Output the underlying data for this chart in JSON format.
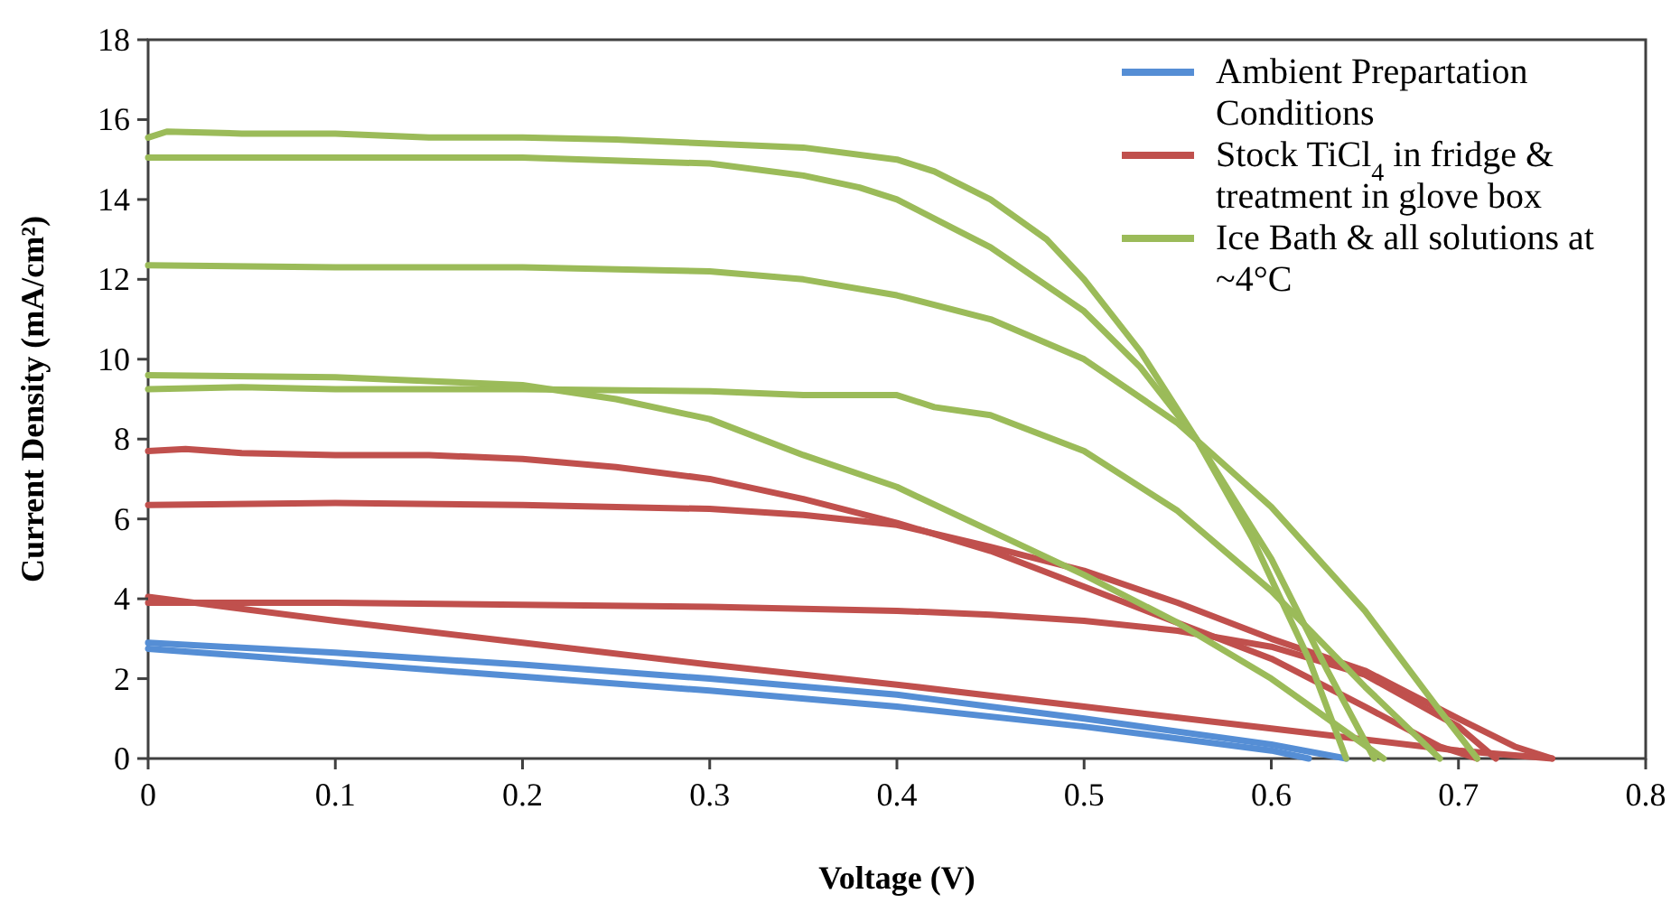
{
  "chart_data": {
    "type": "line",
    "xlabel": "Voltage (V)",
    "ylabel": "Current Density (mA/cm²)",
    "xlim": [
      0,
      0.8
    ],
    "xticks": [
      0,
      0.1,
      0.2,
      0.3,
      0.4,
      0.5,
      0.6,
      0.7,
      0.8
    ],
    "ylim": [
      0,
      18
    ],
    "yticks": [
      0,
      2,
      4,
      6,
      8,
      10,
      12,
      14,
      16,
      18
    ],
    "grid": false,
    "legend": "top right",
    "series": [
      {
        "name": "Ambient Prepartation Conditions",
        "color": "#558ed5",
        "x": [
          0,
          0.1,
          0.2,
          0.3,
          0.4,
          0.5,
          0.6,
          0.64
        ],
        "values": [
          2.9,
          2.65,
          2.35,
          2.0,
          1.6,
          1.0,
          0.35,
          0
        ]
      },
      {
        "color": "#558ed5",
        "x": [
          0,
          0.1,
          0.2,
          0.3,
          0.4,
          0.5,
          0.6,
          0.62
        ],
        "values": [
          2.75,
          2.4,
          2.05,
          1.7,
          1.3,
          0.8,
          0.2,
          0
        ]
      },
      {
        "name": "Stock TiCl$_{4}$ in fridge & treatment in glove box",
        "color": "#c0504d",
        "x": [
          0,
          0.02,
          0.05,
          0.1,
          0.15,
          0.2,
          0.25,
          0.3,
          0.35,
          0.4,
          0.45,
          0.5,
          0.55,
          0.6,
          0.65,
          0.69,
          0.71
        ],
        "values": [
          7.7,
          7.75,
          7.65,
          7.6,
          7.6,
          7.5,
          7.3,
          7.0,
          6.5,
          5.9,
          5.2,
          4.3,
          3.4,
          2.5,
          1.3,
          0.3,
          0
        ]
      },
      {
        "color": "#c0504d",
        "x": [
          0,
          0.1,
          0.2,
          0.3,
          0.35,
          0.4,
          0.45,
          0.5,
          0.55,
          0.6,
          0.65,
          0.7,
          0.73,
          0.75
        ],
        "values": [
          6.35,
          6.4,
          6.35,
          6.25,
          6.1,
          5.85,
          5.3,
          4.7,
          3.9,
          3.0,
          2.2,
          1.0,
          0.3,
          0
        ]
      },
      {
        "color": "#c0504d",
        "x": [
          0,
          0.1,
          0.2,
          0.3,
          0.4,
          0.45,
          0.5,
          0.55,
          0.6,
          0.65,
          0.7,
          0.72
        ],
        "values": [
          3.9,
          3.9,
          3.85,
          3.8,
          3.7,
          3.6,
          3.45,
          3.2,
          2.8,
          2.1,
          0.8,
          0
        ]
      },
      {
        "color": "#c0504d",
        "x": [
          0,
          0.1,
          0.2,
          0.3,
          0.4,
          0.5,
          0.6,
          0.7,
          0.75
        ],
        "values": [
          4.05,
          3.45,
          2.9,
          2.35,
          1.85,
          1.3,
          0.75,
          0.2,
          0
        ]
      },
      {
        "name": "Ice Bath & all solutions at ~4°C",
        "color": "#9bbb59",
        "x": [
          0,
          0.01,
          0.05,
          0.1,
          0.15,
          0.2,
          0.25,
          0.3,
          0.35,
          0.4,
          0.42,
          0.45,
          0.48,
          0.5,
          0.53,
          0.56,
          0.6,
          0.63,
          0.655
        ],
        "values": [
          15.55,
          15.7,
          15.65,
          15.65,
          15.55,
          15.55,
          15.5,
          15.4,
          15.3,
          15.0,
          14.7,
          14.0,
          13.0,
          12.0,
          10.2,
          8.0,
          5.0,
          2.2,
          0
        ]
      },
      {
        "color": "#9bbb59",
        "x": [
          0,
          0.1,
          0.2,
          0.3,
          0.35,
          0.38,
          0.4,
          0.45,
          0.5,
          0.53,
          0.56,
          0.59,
          0.62,
          0.64
        ],
        "values": [
          15.05,
          15.05,
          15.05,
          14.9,
          14.6,
          14.3,
          14.0,
          12.8,
          11.2,
          9.8,
          8.0,
          5.5,
          2.5,
          0
        ]
      },
      {
        "color": "#9bbb59",
        "x": [
          0,
          0.1,
          0.2,
          0.3,
          0.35,
          0.4,
          0.45,
          0.5,
          0.55,
          0.6,
          0.65,
          0.69,
          0.71
        ],
        "values": [
          12.35,
          12.3,
          12.3,
          12.2,
          12.0,
          11.6,
          11.0,
          10.0,
          8.4,
          6.3,
          3.7,
          1.2,
          0
        ]
      },
      {
        "color": "#9bbb59",
        "x": [
          0,
          0.05,
          0.1,
          0.2,
          0.3,
          0.35,
          0.4,
          0.42,
          0.45,
          0.5,
          0.55,
          0.6,
          0.65,
          0.69
        ],
        "values": [
          9.25,
          9.3,
          9.25,
          9.25,
          9.2,
          9.1,
          9.1,
          8.8,
          8.6,
          7.7,
          6.2,
          4.2,
          1.8,
          0
        ]
      },
      {
        "color": "#9bbb59",
        "x": [
          0,
          0.1,
          0.2,
          0.25,
          0.3,
          0.35,
          0.4,
          0.45,
          0.5,
          0.55,
          0.6,
          0.66
        ],
        "values": [
          9.6,
          9.55,
          9.35,
          9.0,
          8.5,
          7.6,
          6.8,
          5.7,
          4.6,
          3.4,
          2.0,
          0
        ]
      }
    ]
  }
}
